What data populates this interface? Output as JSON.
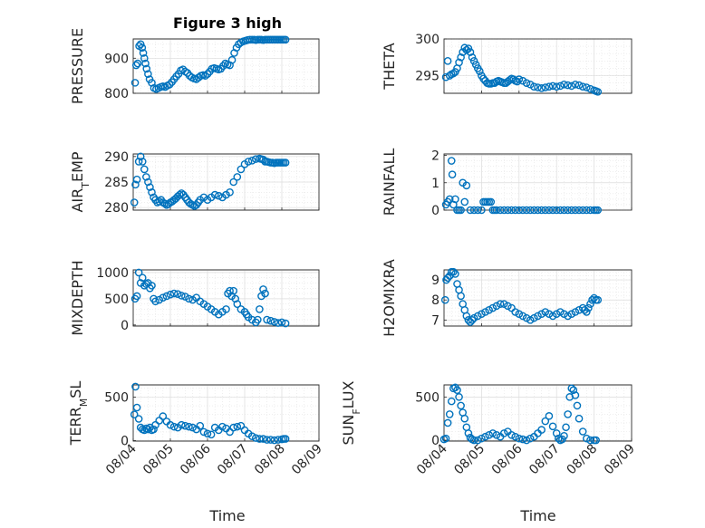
{
  "title": "Figure 3 high",
  "chart_data": {
    "type": "scatter",
    "marker": "circle",
    "marker_color": "#0072BD",
    "grid": true,
    "minor_grid": true,
    "x_range": [
      "08/04",
      "08/09"
    ],
    "x_ticks": [
      "08/04",
      "08/05",
      "08/06",
      "08/07",
      "08/08",
      "08/09"
    ],
    "xlabel": "Time",
    "panels": [
      {
        "ylabel": "PRESSURE",
        "ylim": [
          800,
          955
        ],
        "yticks": [
          800,
          900
        ],
        "x": [
          0.05,
          0.08,
          0.12,
          0.16,
          0.2,
          0.24,
          0.27,
          0.3,
          0.33,
          0.36,
          0.4,
          0.44,
          0.5,
          0.56,
          0.62,
          0.68,
          0.74,
          0.8,
          0.86,
          0.92,
          0.98,
          1.04,
          1.1,
          1.16,
          1.22,
          1.28,
          1.34,
          1.4,
          1.46,
          1.52,
          1.58,
          1.64,
          1.7,
          1.76,
          1.82,
          1.88,
          1.94,
          2.0,
          2.06,
          2.12,
          2.18,
          2.24,
          2.3,
          2.36,
          2.42,
          2.48,
          2.54,
          2.6,
          2.66,
          2.72,
          2.78,
          2.84,
          2.9,
          2.96,
          3.02,
          3.08,
          3.14,
          3.2,
          3.26,
          3.3,
          3.35,
          3.4,
          3.45,
          3.5,
          3.55,
          3.6,
          3.65,
          3.7,
          3.75,
          3.8,
          3.85,
          3.9,
          3.95,
          4.0,
          4.05,
          4.1
        ],
        "y": [
          830,
          880,
          885,
          935,
          940,
          930,
          915,
          900,
          885,
          870,
          855,
          840,
          830,
          815,
          812,
          815,
          818,
          820,
          818,
          822,
          825,
          832,
          840,
          848,
          855,
          865,
          868,
          862,
          858,
          850,
          845,
          842,
          840,
          845,
          850,
          852,
          850,
          855,
          862,
          870,
          872,
          870,
          868,
          870,
          878,
          885,
          882,
          880,
          895,
          915,
          930,
          940,
          945,
          948,
          950,
          952,
          953,
          953,
          953,
          952,
          953,
          953,
          953,
          952,
          953,
          953,
          953,
          953,
          953,
          953,
          953,
          953,
          953,
          953,
          953,
          953
        ]
      },
      {
        "ylabel": "THETA",
        "ylim": [
          292.6,
          300
        ],
        "yticks": [
          295,
          300
        ],
        "x": [
          0.05,
          0.1,
          0.15,
          0.2,
          0.25,
          0.3,
          0.35,
          0.4,
          0.45,
          0.5,
          0.55,
          0.6,
          0.65,
          0.7,
          0.75,
          0.8,
          0.85,
          0.9,
          0.95,
          1.0,
          1.05,
          1.1,
          1.15,
          1.2,
          1.25,
          1.3,
          1.35,
          1.4,
          1.45,
          1.5,
          1.55,
          1.6,
          1.65,
          1.7,
          1.75,
          1.8,
          1.85,
          1.9,
          1.95,
          2.0,
          2.1,
          2.2,
          2.3,
          2.4,
          2.5,
          2.6,
          2.7,
          2.8,
          2.9,
          3.0,
          3.1,
          3.2,
          3.3,
          3.4,
          3.5,
          3.6,
          3.7,
          3.8,
          3.9,
          4.0,
          4.05,
          4.1
        ],
        "y": [
          294.8,
          297,
          295,
          295.2,
          295.3,
          295.5,
          296,
          296.8,
          297.5,
          298.2,
          298.8,
          298.5,
          298.7,
          298.2,
          297.5,
          297,
          296.5,
          296,
          295.6,
          295,
          294.6,
          294.3,
          294,
          293.9,
          293.9,
          294,
          294,
          294.2,
          294.3,
          294.2,
          294.1,
          294,
          294,
          294.2,
          294.4,
          294.6,
          294.5,
          294.3,
          294.2,
          294.5,
          294.3,
          294,
          293.8,
          293.5,
          293.4,
          293.3,
          293.4,
          293.5,
          293.6,
          293.5,
          293.6,
          293.8,
          293.7,
          293.6,
          293.8,
          293.7,
          293.5,
          293.4,
          293.2,
          293,
          292.9,
          292.8
        ]
      },
      {
        "ylabel": "AIR_TEMP",
        "ylim": [
          279.5,
          290.5
        ],
        "yticks": [
          280,
          285,
          290
        ],
        "x": [
          0.03,
          0.06,
          0.1,
          0.15,
          0.2,
          0.25,
          0.3,
          0.35,
          0.4,
          0.45,
          0.5,
          0.55,
          0.6,
          0.65,
          0.7,
          0.75,
          0.8,
          0.85,
          0.9,
          0.95,
          1.0,
          1.05,
          1.1,
          1.15,
          1.2,
          1.25,
          1.3,
          1.35,
          1.4,
          1.45,
          1.5,
          1.55,
          1.6,
          1.65,
          1.7,
          1.75,
          1.8,
          1.9,
          2.0,
          2.1,
          2.2,
          2.3,
          2.4,
          2.5,
          2.6,
          2.7,
          2.8,
          2.9,
          3.0,
          3.1,
          3.2,
          3.3,
          3.4,
          3.45,
          3.5,
          3.55,
          3.6,
          3.65,
          3.7,
          3.75,
          3.8,
          3.85,
          3.9,
          3.95,
          4.0,
          4.05,
          4.1
        ],
        "y": [
          281,
          284.5,
          285.5,
          289,
          290,
          289,
          287.5,
          286,
          285,
          284,
          283,
          282,
          281.5,
          281,
          281.2,
          281.5,
          281,
          280.8,
          280.5,
          280.7,
          281,
          281.2,
          281.5,
          281.8,
          282.2,
          282.5,
          282.8,
          282.5,
          282,
          281.5,
          281,
          280.7,
          280.5,
          280.3,
          280.5,
          281,
          281.5,
          282,
          281.5,
          282,
          282.5,
          282.3,
          282,
          282.5,
          283,
          285,
          286,
          287.5,
          288.5,
          289,
          289.2,
          289.5,
          289.6,
          289.5,
          289.4,
          289,
          289,
          288.9,
          288.8,
          288.8,
          288.7,
          288.8,
          288.8,
          288.8,
          288.8,
          288.8,
          288.8
        ]
      },
      {
        "ylabel": "RAINFALL",
        "ylim": [
          0,
          2.05
        ],
        "yticks": [
          0,
          1,
          2
        ],
        "x": [
          0.05,
          0.1,
          0.15,
          0.2,
          0.22,
          0.25,
          0.3,
          0.35,
          0.4,
          0.45,
          0.5,
          0.55,
          0.6,
          0.7,
          0.8,
          0.9,
          1.0,
          1.05,
          1.1,
          1.15,
          1.2,
          1.25,
          1.3,
          1.35,
          1.4,
          1.5,
          1.6,
          1.7,
          1.8,
          1.9,
          2.0,
          2.1,
          2.2,
          2.3,
          2.4,
          2.5,
          2.6,
          2.7,
          2.8,
          2.9,
          3.0,
          3.1,
          3.2,
          3.3,
          3.4,
          3.5,
          3.6,
          3.7,
          3.8,
          3.9,
          4.0,
          4.05,
          4.1
        ],
        "y": [
          0.2,
          0.3,
          0.4,
          1.8,
          1.3,
          0.2,
          0.4,
          0,
          0,
          0,
          1.0,
          0.3,
          0.9,
          0,
          0,
          0,
          0,
          0.3,
          0.3,
          0.3,
          0.3,
          0.3,
          0,
          0,
          0,
          0,
          0,
          0,
          0,
          0,
          0,
          0,
          0,
          0,
          0,
          0,
          0,
          0,
          0,
          0,
          0,
          0,
          0,
          0,
          0,
          0,
          0,
          0,
          0,
          0,
          0,
          0,
          0
        ]
      },
      {
        "ylabel": "MIXDEPTH",
        "ylim": [
          -20,
          1050
        ],
        "yticks": [
          0,
          500,
          1000
        ],
        "x": [
          0.05,
          0.1,
          0.15,
          0.2,
          0.25,
          0.3,
          0.35,
          0.4,
          0.45,
          0.5,
          0.55,
          0.6,
          0.7,
          0.8,
          0.9,
          1.0,
          1.1,
          1.2,
          1.3,
          1.4,
          1.5,
          1.6,
          1.7,
          1.8,
          1.9,
          2.0,
          2.1,
          2.2,
          2.3,
          2.4,
          2.5,
          2.55,
          2.6,
          2.65,
          2.7,
          2.75,
          2.8,
          2.9,
          3.0,
          3.05,
          3.1,
          3.2,
          3.3,
          3.35,
          3.4,
          3.45,
          3.5,
          3.55,
          3.6,
          3.7,
          3.8,
          3.9,
          4.0,
          4.1
        ],
        "y": [
          500,
          550,
          1000,
          800,
          900,
          750,
          780,
          800,
          700,
          750,
          500,
          450,
          480,
          520,
          550,
          580,
          600,
          590,
          560,
          540,
          500,
          480,
          520,
          450,
          400,
          350,
          300,
          250,
          200,
          250,
          300,
          600,
          650,
          550,
          650,
          500,
          400,
          300,
          250,
          200,
          150,
          100,
          50,
          100,
          300,
          550,
          680,
          600,
          100,
          80,
          60,
          40,
          50,
          30
        ]
      },
      {
        "ylabel": "H2OMIXRA",
        "ylim": [
          6.7,
          9.5
        ],
        "yticks": [
          7,
          8,
          9
        ],
        "x": [
          0.03,
          0.06,
          0.1,
          0.15,
          0.2,
          0.25,
          0.3,
          0.35,
          0.4,
          0.45,
          0.5,
          0.55,
          0.6,
          0.65,
          0.7,
          0.75,
          0.8,
          0.9,
          1.0,
          1.1,
          1.2,
          1.3,
          1.4,
          1.5,
          1.6,
          1.7,
          1.8,
          1.9,
          2.0,
          2.1,
          2.2,
          2.3,
          2.4,
          2.5,
          2.6,
          2.7,
          2.8,
          2.9,
          3.0,
          3.1,
          3.2,
          3.3,
          3.4,
          3.5,
          3.6,
          3.7,
          3.75,
          3.8,
          3.85,
          3.9,
          3.95,
          4.0,
          4.05,
          4.1
        ],
        "y": [
          8,
          9,
          9.1,
          9.2,
          9.4,
          9.4,
          9.3,
          8.8,
          8.5,
          8.2,
          7.8,
          7.5,
          7.2,
          7.0,
          6.9,
          7.0,
          7.1,
          7.2,
          7.3,
          7.4,
          7.5,
          7.6,
          7.7,
          7.8,
          7.8,
          7.7,
          7.6,
          7.4,
          7.3,
          7.2,
          7.1,
          7.0,
          7.1,
          7.2,
          7.3,
          7.4,
          7.3,
          7.2,
          7.3,
          7.4,
          7.3,
          7.2,
          7.3,
          7.4,
          7.5,
          7.6,
          7.5,
          7.4,
          7.6,
          7.8,
          8.0,
          8.1,
          8.0,
          8.0
        ]
      },
      {
        "ylabel": "TERR_MSL",
        "ylim": [
          -5,
          640
        ],
        "yticks": [
          0,
          500
        ],
        "x": [
          0.03,
          0.06,
          0.1,
          0.15,
          0.2,
          0.25,
          0.3,
          0.35,
          0.4,
          0.45,
          0.5,
          0.55,
          0.6,
          0.7,
          0.8,
          0.9,
          1.0,
          1.1,
          1.2,
          1.3,
          1.4,
          1.5,
          1.6,
          1.7,
          1.8,
          1.9,
          2.0,
          2.1,
          2.2,
          2.3,
          2.4,
          2.5,
          2.6,
          2.7,
          2.8,
          2.9,
          3.0,
          3.1,
          3.2,
          3.3,
          3.4,
          3.5,
          3.6,
          3.7,
          3.8,
          3.9,
          4.0,
          4.05,
          4.1
        ],
        "y": [
          300,
          620,
          380,
          250,
          150,
          130,
          120,
          140,
          130,
          150,
          120,
          130,
          180,
          230,
          280,
          220,
          180,
          160,
          150,
          180,
          170,
          160,
          150,
          130,
          170,
          100,
          80,
          70,
          150,
          120,
          160,
          140,
          100,
          150,
          160,
          170,
          120,
          80,
          50,
          30,
          20,
          20,
          10,
          10,
          5,
          10,
          15,
          20,
          20
        ]
      },
      {
        "ylabel": "SUN_FLUX",
        "ylim": [
          -10,
          640
        ],
        "yticks": [
          0,
          500
        ],
        "x": [
          0.0,
          0.05,
          0.1,
          0.15,
          0.2,
          0.25,
          0.3,
          0.35,
          0.4,
          0.45,
          0.5,
          0.55,
          0.6,
          0.65,
          0.7,
          0.75,
          0.8,
          0.9,
          1.0,
          1.1,
          1.2,
          1.3,
          1.4,
          1.5,
          1.6,
          1.7,
          1.8,
          1.9,
          2.0,
          2.1,
          2.2,
          2.3,
          2.4,
          2.5,
          2.6,
          2.7,
          2.8,
          2.9,
          3.0,
          3.05,
          3.1,
          3.15,
          3.2,
          3.25,
          3.3,
          3.35,
          3.4,
          3.45,
          3.5,
          3.55,
          3.6,
          3.7,
          3.8,
          3.9,
          4.0,
          4.05
        ],
        "y": [
          10,
          20,
          200,
          300,
          450,
          600,
          610,
          580,
          500,
          400,
          320,
          250,
          150,
          80,
          30,
          10,
          0,
          0,
          20,
          40,
          60,
          80,
          60,
          40,
          80,
          100,
          60,
          40,
          20,
          10,
          0,
          20,
          40,
          80,
          120,
          220,
          280,
          160,
          80,
          20,
          0,
          10,
          50,
          150,
          300,
          500,
          600,
          580,
          520,
          400,
          250,
          100,
          20,
          0,
          0,
          0
        ]
      }
    ]
  }
}
